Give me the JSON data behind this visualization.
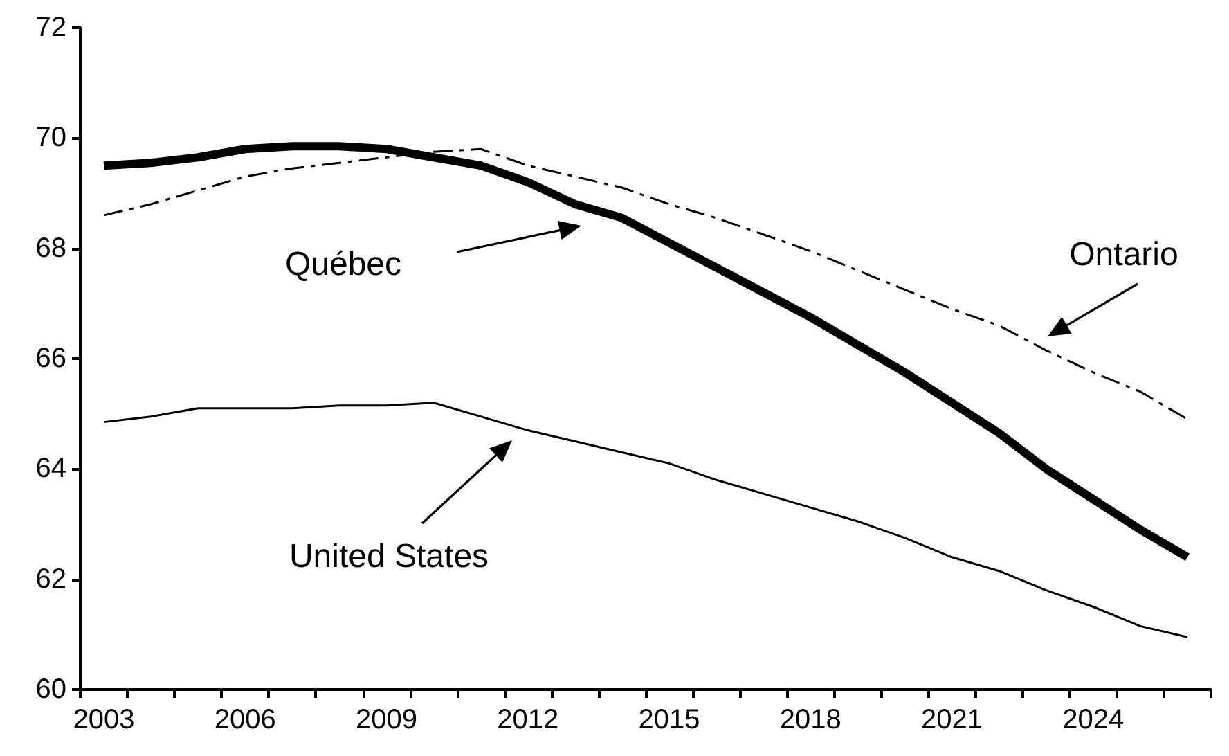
{
  "chart_data": {
    "type": "line",
    "categories": [
      "2003",
      null,
      null,
      "2006",
      null,
      null,
      "2009",
      null,
      null,
      "2012",
      null,
      null,
      "2015",
      null,
      null,
      "2018",
      null,
      null,
      "2021",
      null,
      null,
      "2024",
      null,
      null
    ],
    "series": [
      {
        "color": "#000000",
        "line_style": "solid",
        "values": [
          69.5,
          69.55,
          69.65,
          69.8,
          69.85,
          69.85,
          69.8,
          69.65,
          69.5,
          69.2,
          68.8,
          68.55,
          68.1,
          67.65,
          67.2,
          66.75,
          66.25,
          65.75,
          65.2,
          64.65,
          64.0,
          63.45,
          62.9,
          62.4
        ]
      },
      {
        "color": "#000000",
        "line_style": "dashed",
        "values": [
          68.6,
          68.8,
          69.05,
          69.3,
          69.45,
          69.55,
          69.65,
          69.75,
          69.8,
          69.5,
          69.3,
          69.1,
          68.8,
          68.55,
          68.25,
          67.95,
          67.6,
          67.25,
          66.9,
          66.6,
          66.15,
          65.75,
          65.4,
          64.9
        ]
      },
      {
        "color": "#000000",
        "line_style": "solid",
        "values": [
          64.85,
          64.95,
          65.1,
          65.1,
          65.1,
          65.15,
          65.15,
          65.2,
          64.95,
          64.7,
          64.5,
          64.3,
          64.1,
          63.8,
          63.55,
          63.3,
          63.05,
          62.75,
          62.4,
          62.15,
          61.8,
          61.5,
          61.15,
          60.95
        ]
      }
    ],
    "ylim": [
      60,
      72
    ],
    "yticks": [
      60,
      62,
      64,
      66,
      68,
      70,
      72
    ],
    "annotations": [
      "Québec",
      "Ontario",
      "United States"
    ],
    "grid": false,
    "marker": "none"
  }
}
